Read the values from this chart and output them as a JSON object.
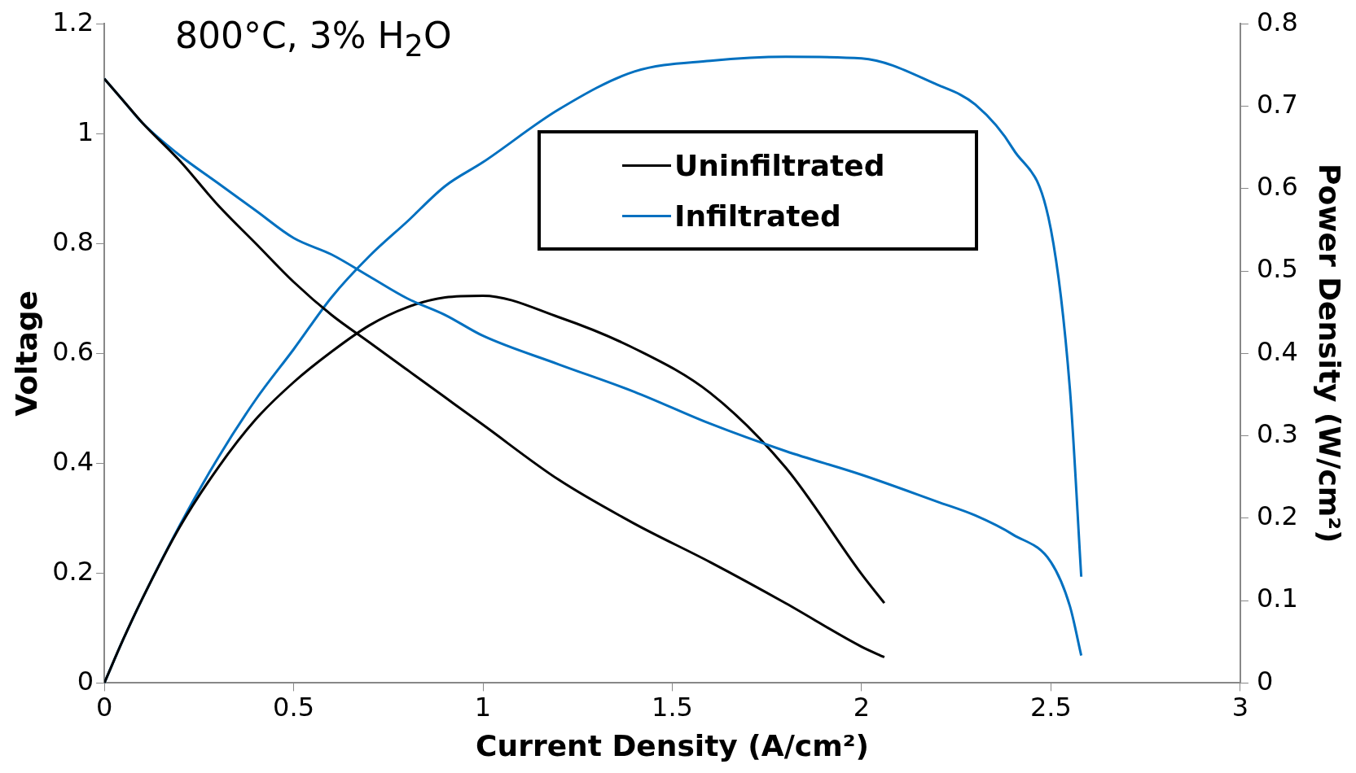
{
  "chart_data": {
    "type": "line",
    "annotations": [
      "800°C, 3% H$_{2}$O"
    ],
    "xlabel": "Current Density (A/cm²)",
    "ylabel": "Voltage",
    "y2label": "Power Density (W/cm²)",
    "xlim": [
      0,
      3
    ],
    "xticks": [
      0,
      0.5,
      1,
      1.5,
      2,
      2.5,
      3
    ],
    "ylim": [
      0,
      1.2
    ],
    "yticks": [
      0,
      0.2,
      0.4,
      0.6,
      0.8,
      1,
      1.2
    ],
    "y2lim": [
      0,
      0.8
    ],
    "y2ticks": [
      0,
      0.1,
      0.2,
      0.3,
      0.4,
      0.5,
      0.6,
      0.7,
      0.8
    ],
    "grid": false,
    "legend": "top",
    "marker": "none",
    "line_style": "solid",
    "series": [
      {
        "name": "Uninfiltrated",
        "color": "#000000",
        "x": [
          0,
          0.05,
          0.1,
          0.2,
          0.3,
          0.4,
          0.5,
          0.6,
          0.7,
          0.8,
          0.9,
          1.0,
          1.2,
          1.4,
          1.6,
          1.8,
          2.0,
          2.06
        ],
        "values": [
          1.1,
          1.06,
          1.02,
          0.95,
          0.87,
          0.8,
          0.73,
          0.67,
          0.62,
          0.57,
          0.52,
          0.47,
          0.37,
          0.29,
          0.22,
          0.145,
          0.066,
          0.047
        ]
      },
      {
        "name": "Infiltrated",
        "color": "#0070c0",
        "x": [
          0,
          0.05,
          0.1,
          0.2,
          0.3,
          0.4,
          0.5,
          0.6,
          0.7,
          0.8,
          0.9,
          1.0,
          1.2,
          1.4,
          1.6,
          1.8,
          2.0,
          2.2,
          2.3,
          2.4,
          2.5,
          2.55,
          2.58
        ],
        "values": [
          1.1,
          1.06,
          1.02,
          0.96,
          0.91,
          0.86,
          0.81,
          0.78,
          0.74,
          0.7,
          0.67,
          0.632,
          0.58,
          0.53,
          0.472,
          0.422,
          0.379,
          0.33,
          0.305,
          0.27,
          0.22,
          0.14,
          0.05
        ]
      },
      {
        "color": "#000000",
        "axis": "y2",
        "x": [
          0,
          0.05,
          0.1,
          0.2,
          0.3,
          0.4,
          0.5,
          0.6,
          0.7,
          0.8,
          0.9,
          1.0,
          1.2,
          1.4,
          1.6,
          1.8,
          2.0,
          2.06
        ],
        "values": [
          0,
          0.053,
          0.102,
          0.19,
          0.261,
          0.32,
          0.365,
          0.402,
          0.434,
          0.456,
          0.468,
          0.47,
          0.444,
          0.406,
          0.352,
          0.261,
          0.132,
          0.097
        ]
      },
      {
        "color": "#0070c0",
        "axis": "y2",
        "x": [
          0,
          0.05,
          0.1,
          0.2,
          0.3,
          0.4,
          0.5,
          0.6,
          0.7,
          0.8,
          0.9,
          1.0,
          1.2,
          1.4,
          1.6,
          1.8,
          2.0,
          2.2,
          2.3,
          2.4,
          2.5,
          2.55,
          2.58
        ],
        "values": [
          0,
          0.053,
          0.102,
          0.192,
          0.273,
          0.344,
          0.405,
          0.468,
          0.518,
          0.56,
          0.603,
          0.632,
          0.696,
          0.742,
          0.755,
          0.76,
          0.758,
          0.726,
          0.702,
          0.648,
          0.55,
          0.357,
          0.129
        ]
      }
    ]
  }
}
